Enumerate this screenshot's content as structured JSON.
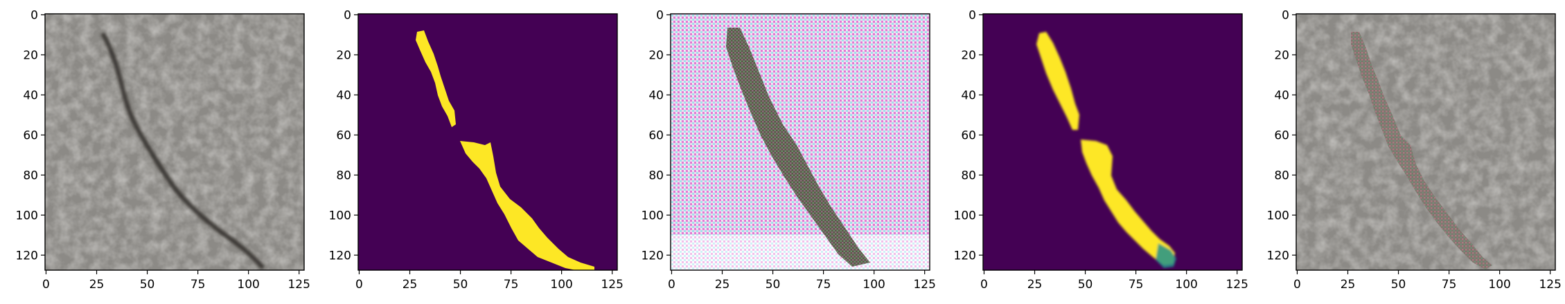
{
  "figure": {
    "panels": [
      {
        "id": "panel-1",
        "content": "input photo of concrete surface with dark crack",
        "kind": "photo"
      },
      {
        "id": "panel-2",
        "content": "binary ground-truth crack mask",
        "kind": "mask"
      },
      {
        "id": "panel-3",
        "content": "generated image with strong magenta/cyan checkerboard artifacts",
        "kind": "artifact"
      },
      {
        "id": "panel-4",
        "content": "predicted crack probability mask",
        "kind": "soft-mask"
      },
      {
        "id": "panel-5",
        "content": "original photo with crack region replaced by noisy reconstruction",
        "kind": "overlay"
      }
    ],
    "y_ticks": [
      "0",
      "20",
      "40",
      "60",
      "80",
      "100",
      "120"
    ],
    "x_ticks": [
      "0",
      "25",
      "50",
      "75",
      "100",
      "125"
    ],
    "colors": {
      "mask_background": "#440154",
      "mask_foreground": "#fde725",
      "mask_edge_green": "#21918c",
      "concrete": "#8c8a86",
      "crack": "#2e2b26",
      "artifact_magenta": "#e28ad6",
      "artifact_cyan": "#8ad9e8"
    }
  }
}
